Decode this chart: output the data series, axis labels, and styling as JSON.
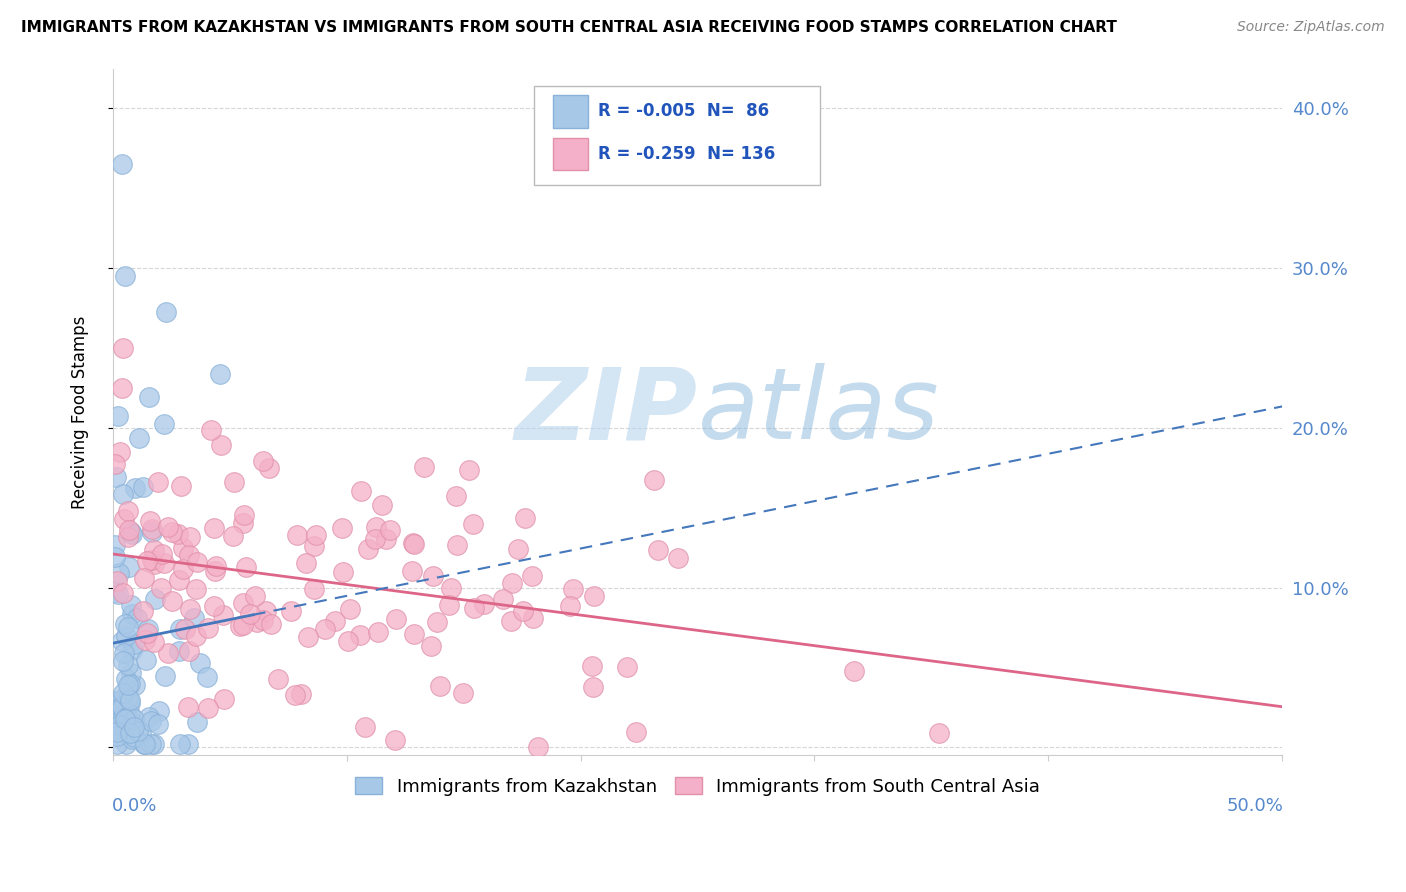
{
  "title": "IMMIGRANTS FROM KAZAKHSTAN VS IMMIGRANTS FROM SOUTH CENTRAL ASIA RECEIVING FOOD STAMPS CORRELATION CHART",
  "source": "Source: ZipAtlas.com",
  "ylabel": "Receiving Food Stamps",
  "y_ticks": [
    0.0,
    0.1,
    0.2,
    0.3,
    0.4
  ],
  "y_tick_labels": [
    "",
    "10.0%",
    "20.0%",
    "30.0%",
    "40.0%"
  ],
  "xlim": [
    0.0,
    0.5
  ],
  "ylim": [
    -0.005,
    0.425
  ],
  "color_kaz": "#a8c8e8",
  "color_sca": "#f4b0c8",
  "color_kaz_line": "#4477bb",
  "color_sca_line": "#dd6688",
  "color_kaz_edge": "#88b0d8",
  "color_sca_edge": "#e090a8",
  "watermark_color": "#d0e4f0",
  "background_color": "#ffffff",
  "grid_color": "#cccccc",
  "tick_color": "#5588cc",
  "legend_text_color": "#2255bb"
}
